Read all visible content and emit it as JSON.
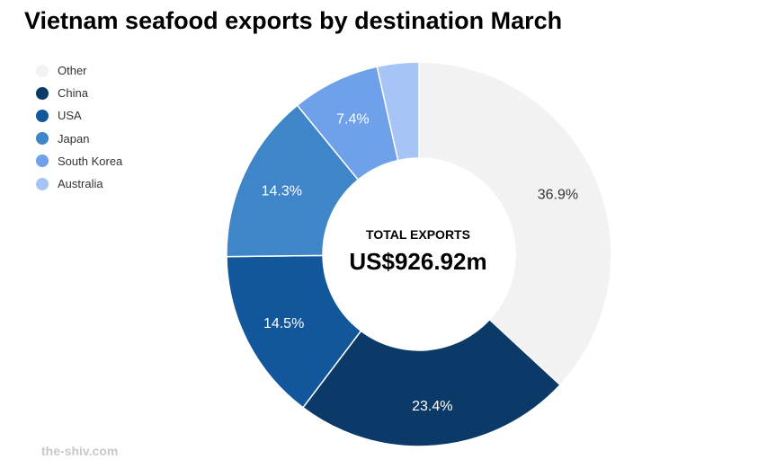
{
  "title": "Vietnam seafood exports by destination March",
  "source": "the-shiv.com",
  "center": {
    "label": "TOTAL EXPORTS",
    "value": "US$926.92m"
  },
  "chart_data": {
    "type": "pie",
    "variant": "donut",
    "title": "Vietnam seafood exports by destination March",
    "legend_position": "top-left",
    "categories": [
      "Other",
      "China",
      "USA",
      "Japan",
      "South Korea",
      "Australia"
    ],
    "values": [
      36.9,
      23.4,
      14.5,
      14.3,
      7.4,
      3.5
    ],
    "labels": [
      "36.9%",
      "23.4%",
      "14.5%",
      "14.3%",
      "7.4%",
      ""
    ],
    "colors": [
      "#f2f2f2",
      "#0b3a68",
      "#12579c",
      "#3f85c9",
      "#6fa0ea",
      "#a6c4f5"
    ],
    "label_colors": [
      "#333333",
      "#ffffff",
      "#ffffff",
      "#ffffff",
      "#ffffff",
      "#ffffff"
    ]
  }
}
